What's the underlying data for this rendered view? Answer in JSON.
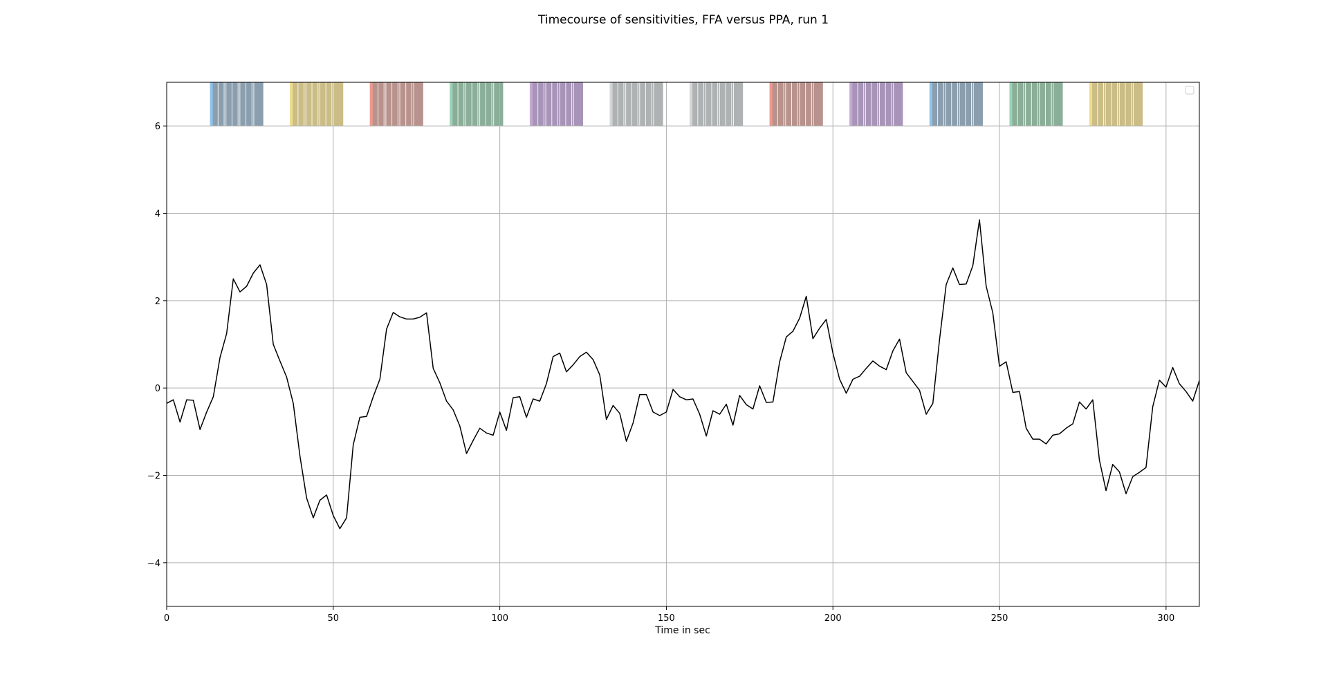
{
  "chart_data": {
    "type": "line",
    "title": "Timecourse of sensitivities, FFA versus PPA, run 1",
    "xlabel": "Time in sec",
    "ylabel": "",
    "xlim": [
      0,
      310
    ],
    "ylim": [
      -5,
      7
    ],
    "xticks": [
      0,
      50,
      100,
      150,
      200,
      250,
      300
    ],
    "yticks": [
      -4,
      -2,
      0,
      2,
      4,
      6
    ],
    "xtick_labels": [
      "0",
      "50",
      "100",
      "150",
      "200",
      "250",
      "300"
    ],
    "ytick_labels": [
      "−4",
      "−2",
      "0",
      "2",
      "4",
      "6"
    ],
    "grid": true,
    "legend": "top-right (empty)",
    "series": [
      {
        "color": "#000000",
        "x": [
          0,
          2,
          4,
          6,
          8,
          10,
          12,
          14,
          16,
          18,
          20,
          22,
          24,
          26,
          28,
          30,
          32,
          34,
          36,
          38,
          40,
          42,
          44,
          46,
          48,
          50,
          52,
          54,
          56,
          58,
          60,
          62,
          64,
          66,
          68,
          70,
          72,
          74,
          76,
          78,
          80,
          82,
          84,
          86,
          88,
          90,
          92,
          94,
          96,
          98,
          100,
          102,
          104,
          106,
          108,
          110,
          112,
          114,
          116,
          118,
          120,
          122,
          124,
          126,
          128,
          130,
          132,
          134,
          136,
          138,
          140,
          142,
          144,
          146,
          148,
          150,
          152,
          154,
          156,
          158,
          160,
          162,
          164,
          166,
          168,
          170,
          172,
          174,
          176,
          178,
          180,
          182,
          184,
          186,
          188,
          190,
          192,
          194,
          196,
          198,
          200,
          202,
          204,
          206,
          208,
          210,
          212,
          214,
          216,
          218,
          220,
          222,
          224,
          226,
          228,
          230,
          232,
          234,
          236,
          238,
          240,
          242,
          244,
          246,
          248,
          250,
          252,
          254,
          256,
          258,
          260,
          262,
          264,
          266,
          268,
          270,
          272,
          274,
          276,
          278,
          280,
          282,
          284,
          286,
          288,
          290,
          292,
          294,
          296,
          298,
          300,
          302,
          304,
          306,
          308,
          310
        ],
        "y": [
          -0.35,
          -0.27,
          -0.78,
          -0.27,
          -0.28,
          -0.95,
          -0.55,
          -0.2,
          0.7,
          1.25,
          2.5,
          2.2,
          2.33,
          2.63,
          2.82,
          2.37,
          1.0,
          0.62,
          0.25,
          -0.35,
          -1.55,
          -2.52,
          -2.97,
          -2.57,
          -2.45,
          -2.92,
          -3.22,
          -2.97,
          -1.3,
          -0.67,
          -0.65,
          -0.2,
          0.2,
          1.35,
          1.73,
          1.63,
          1.58,
          1.58,
          1.62,
          1.72,
          0.45,
          0.12,
          -0.3,
          -0.5,
          -0.87,
          -1.5,
          -1.2,
          -0.92,
          -1.03,
          -1.08,
          -0.55,
          -0.97,
          -0.22,
          -0.2,
          -0.67,
          -0.25,
          -0.3,
          0.1,
          0.72,
          0.8,
          0.37,
          0.53,
          0.72,
          0.82,
          0.65,
          0.3,
          -0.72,
          -0.4,
          -0.58,
          -1.22,
          -0.8,
          -0.15,
          -0.15,
          -0.55,
          -0.63,
          -0.55,
          -0.03,
          -0.2,
          -0.27,
          -0.25,
          -0.6,
          -1.1,
          -0.52,
          -0.6,
          -0.37,
          -0.85,
          -0.17,
          -0.38,
          -0.48,
          0.05,
          -0.33,
          -0.32,
          0.6,
          1.17,
          1.3,
          1.6,
          2.1,
          1.13,
          1.37,
          1.57,
          0.8,
          0.2,
          -0.12,
          0.2,
          0.27,
          0.45,
          0.62,
          0.5,
          0.42,
          0.85,
          1.12,
          0.35,
          0.15,
          -0.05,
          -0.6,
          -0.35,
          1.1,
          2.37,
          2.75,
          2.37,
          2.38,
          2.8,
          3.85,
          2.33,
          1.72,
          0.5,
          0.6,
          -0.1,
          -0.08,
          -0.92,
          -1.17,
          -1.17,
          -1.28,
          -1.08,
          -1.05,
          -0.92,
          -0.82,
          -0.32,
          -0.48,
          -0.27,
          -1.65,
          -2.35,
          -1.75,
          -1.92,
          -2.42,
          -2.03,
          -1.93,
          -1.82,
          -0.43,
          0.18,
          0.02,
          0.47,
          0.1,
          -0.08,
          -0.3,
          0.17
        ]
      }
    ],
    "blocks": [
      {
        "start": 13,
        "end": 29,
        "edge": "#8ec4ea",
        "fill": "#8a9eae"
      },
      {
        "start": 37,
        "end": 53,
        "edge": "#f0dc8a",
        "fill": "#cbbd86"
      },
      {
        "start": 61,
        "end": 77,
        "edge": "#ec9a8e",
        "fill": "#b8928c"
      },
      {
        "start": 85,
        "end": 101,
        "edge": "#9ad2b8",
        "fill": "#8aae98"
      },
      {
        "start": 109,
        "end": 125,
        "edge": "#c4a8d2",
        "fill": "#a894b8"
      },
      {
        "start": 133,
        "end": 149,
        "edge": "#d4d6d6",
        "fill": "#aeb2b2"
      },
      {
        "start": 157,
        "end": 173,
        "edge": "#d4d6d6",
        "fill": "#aeb2b2"
      },
      {
        "start": 181,
        "end": 197,
        "edge": "#ec9a8e",
        "fill": "#b8928c"
      },
      {
        "start": 205,
        "end": 221,
        "edge": "#c4a8d2",
        "fill": "#a894b8"
      },
      {
        "start": 229,
        "end": 245,
        "edge": "#8ec4ea",
        "fill": "#8a9eae"
      },
      {
        "start": 253,
        "end": 269,
        "edge": "#9ad2b8",
        "fill": "#8aae98"
      },
      {
        "start": 277,
        "end": 293,
        "edge": "#f0dc8a",
        "fill": "#cbbd86"
      }
    ],
    "block_ylim": [
      6,
      7
    ]
  }
}
